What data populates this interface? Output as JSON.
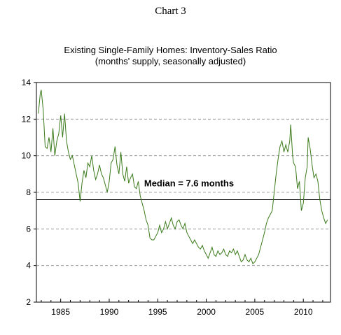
{
  "header": {
    "chart_number": "Chart 3",
    "title": "Existing Single-Family Homes: Inventory-Sales Ratio",
    "subtitle": "(months' supply, seasonally adjusted)"
  },
  "chart_data": {
    "type": "line",
    "title": "Existing Single-Family Homes: Inventory-Sales Ratio",
    "subtitle": "(months' supply, seasonally adjusted)",
    "xlabel": "",
    "ylabel": "",
    "xlim": [
      1982.5,
      2012.8
    ],
    "ylim": [
      2,
      14
    ],
    "x_ticks": [
      1985,
      1990,
      1995,
      2000,
      2005,
      2010
    ],
    "y_ticks": [
      2,
      4,
      6,
      8,
      10,
      12,
      14
    ],
    "grid": "horizontal dashed",
    "reference_line": {
      "value": 7.6,
      "label": "Median = 7.6 months"
    },
    "line_color": "#3a7a1a",
    "series": [
      {
        "points": [
          [
            1982.7,
            12.3
          ],
          [
            1982.9,
            13.4
          ],
          [
            1983.0,
            13.6
          ],
          [
            1983.2,
            12.5
          ],
          [
            1983.4,
            10.5
          ],
          [
            1983.6,
            10.4
          ],
          [
            1983.8,
            11.0
          ],
          [
            1984.0,
            10.2
          ],
          [
            1984.2,
            11.5
          ],
          [
            1984.4,
            10.0
          ],
          [
            1984.6,
            10.8
          ],
          [
            1984.8,
            11.2
          ],
          [
            1985.0,
            12.2
          ],
          [
            1985.2,
            11.0
          ],
          [
            1985.4,
            12.3
          ],
          [
            1985.6,
            10.8
          ],
          [
            1985.8,
            10.2
          ],
          [
            1986.0,
            9.8
          ],
          [
            1986.2,
            10.0
          ],
          [
            1986.4,
            9.5
          ],
          [
            1986.6,
            9.0
          ],
          [
            1986.8,
            8.5
          ],
          [
            1987.0,
            7.5
          ],
          [
            1987.2,
            8.5
          ],
          [
            1987.4,
            9.2
          ],
          [
            1987.6,
            8.8
          ],
          [
            1987.8,
            9.6
          ],
          [
            1988.0,
            9.4
          ],
          [
            1988.2,
            10.0
          ],
          [
            1988.4,
            9.2
          ],
          [
            1988.6,
            8.7
          ],
          [
            1988.8,
            9.0
          ],
          [
            1989.0,
            9.5
          ],
          [
            1989.2,
            9.0
          ],
          [
            1989.4,
            8.8
          ],
          [
            1989.6,
            8.4
          ],
          [
            1989.8,
            8.0
          ],
          [
            1990.0,
            8.6
          ],
          [
            1990.2,
            9.6
          ],
          [
            1990.4,
            9.8
          ],
          [
            1990.6,
            10.5
          ],
          [
            1990.8,
            9.5
          ],
          [
            1991.0,
            9.0
          ],
          [
            1991.2,
            10.2
          ],
          [
            1991.4,
            9.0
          ],
          [
            1991.6,
            8.6
          ],
          [
            1991.8,
            9.4
          ],
          [
            1992.0,
            8.5
          ],
          [
            1992.2,
            8.8
          ],
          [
            1992.4,
            9.0
          ],
          [
            1992.6,
            8.3
          ],
          [
            1992.8,
            8.2
          ],
          [
            1993.0,
            8.6
          ],
          [
            1993.2,
            7.8
          ],
          [
            1993.4,
            7.4
          ],
          [
            1993.6,
            7.0
          ],
          [
            1993.8,
            6.5
          ],
          [
            1994.0,
            6.2
          ],
          [
            1994.2,
            5.5
          ],
          [
            1994.4,
            5.4
          ],
          [
            1994.6,
            5.4
          ],
          [
            1994.8,
            5.6
          ],
          [
            1995.0,
            5.8
          ],
          [
            1995.2,
            6.2
          ],
          [
            1995.4,
            5.8
          ],
          [
            1995.6,
            6.0
          ],
          [
            1995.8,
            6.4
          ],
          [
            1996.0,
            6.0
          ],
          [
            1996.2,
            6.3
          ],
          [
            1996.4,
            6.6
          ],
          [
            1996.6,
            6.2
          ],
          [
            1996.8,
            6.0
          ],
          [
            1997.0,
            6.4
          ],
          [
            1997.2,
            6.5
          ],
          [
            1997.4,
            6.2
          ],
          [
            1997.6,
            6.0
          ],
          [
            1997.8,
            6.3
          ],
          [
            1998.0,
            5.8
          ],
          [
            1998.2,
            5.6
          ],
          [
            1998.4,
            5.4
          ],
          [
            1998.6,
            5.2
          ],
          [
            1998.8,
            5.4
          ],
          [
            1999.0,
            5.2
          ],
          [
            1999.2,
            5.0
          ],
          [
            1999.4,
            4.9
          ],
          [
            1999.6,
            5.1
          ],
          [
            1999.8,
            4.8
          ],
          [
            2000.0,
            4.6
          ],
          [
            2000.2,
            4.4
          ],
          [
            2000.4,
            4.7
          ],
          [
            2000.6,
            5.0
          ],
          [
            2000.8,
            4.6
          ],
          [
            2001.0,
            4.5
          ],
          [
            2001.2,
            4.8
          ],
          [
            2001.4,
            4.6
          ],
          [
            2001.6,
            4.7
          ],
          [
            2001.8,
            4.9
          ],
          [
            2002.0,
            4.6
          ],
          [
            2002.2,
            4.5
          ],
          [
            2002.4,
            4.8
          ],
          [
            2002.6,
            4.7
          ],
          [
            2002.8,
            4.9
          ],
          [
            2003.0,
            4.6
          ],
          [
            2003.2,
            4.8
          ],
          [
            2003.4,
            4.5
          ],
          [
            2003.6,
            4.2
          ],
          [
            2003.8,
            4.3
          ],
          [
            2004.0,
            4.6
          ],
          [
            2004.2,
            4.3
          ],
          [
            2004.4,
            4.2
          ],
          [
            2004.6,
            4.4
          ],
          [
            2004.8,
            4.1
          ],
          [
            2005.0,
            4.2
          ],
          [
            2005.2,
            4.4
          ],
          [
            2005.4,
            4.6
          ],
          [
            2005.6,
            5.0
          ],
          [
            2005.8,
            5.4
          ],
          [
            2006.0,
            5.8
          ],
          [
            2006.2,
            6.3
          ],
          [
            2006.4,
            6.6
          ],
          [
            2006.6,
            6.8
          ],
          [
            2006.8,
            7.0
          ],
          [
            2007.0,
            8.0
          ],
          [
            2007.2,
            9.0
          ],
          [
            2007.4,
            9.8
          ],
          [
            2007.6,
            10.5
          ],
          [
            2007.8,
            10.8
          ],
          [
            2008.0,
            10.2
          ],
          [
            2008.2,
            10.6
          ],
          [
            2008.4,
            10.2
          ],
          [
            2008.6,
            10.8
          ],
          [
            2008.7,
            11.7
          ],
          [
            2008.9,
            10.0
          ],
          [
            2009.0,
            9.6
          ],
          [
            2009.2,
            9.4
          ],
          [
            2009.4,
            8.2
          ],
          [
            2009.6,
            8.6
          ],
          [
            2009.8,
            7.0
          ],
          [
            2010.0,
            7.4
          ],
          [
            2010.2,
            8.8
          ],
          [
            2010.4,
            9.4
          ],
          [
            2010.5,
            11.0
          ],
          [
            2010.7,
            10.4
          ],
          [
            2010.9,
            9.5
          ],
          [
            2011.1,
            8.8
          ],
          [
            2011.3,
            9.0
          ],
          [
            2011.5,
            8.6
          ],
          [
            2011.7,
            7.6
          ],
          [
            2011.9,
            7.0
          ],
          [
            2012.1,
            6.6
          ],
          [
            2012.3,
            6.3
          ],
          [
            2012.5,
            6.5
          ]
        ]
      }
    ]
  }
}
